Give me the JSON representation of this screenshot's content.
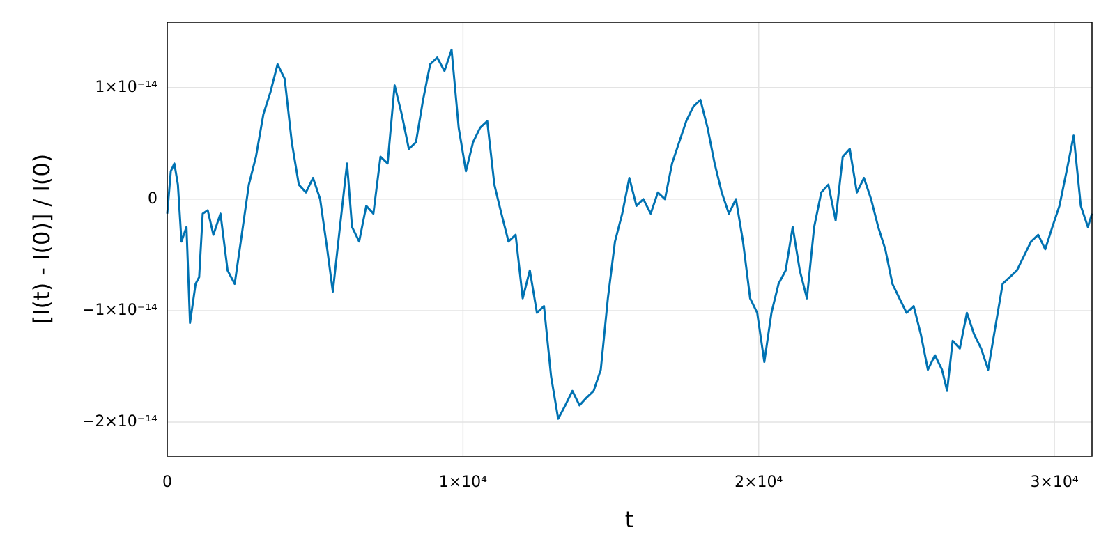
{
  "chart_data": {
    "type": "line",
    "xlabel": "t",
    "ylabel": "[I(t) - I(0)] / I(0)",
    "color": "#0072b2",
    "grid": true,
    "xlim": [
      0,
      31270
    ],
    "ylim": [
      -2.306e-14,
      1.586e-14
    ],
    "xticks": [
      0,
      {
        "value": 10000,
        "label": "1×10⁴"
      },
      {
        "value": 20000,
        "label": "2×10⁴"
      },
      {
        "value": 30000,
        "label": "3×10⁴"
      }
    ],
    "yticks": [
      {
        "value": -2e-14,
        "label": "−2×10⁻¹⁴"
      },
      {
        "value": -1e-14,
        "label": "−1×10⁻¹⁴"
      },
      0,
      {
        "value": 1e-14,
        "label": "1×10⁻¹⁴"
      }
    ],
    "x": [
      0,
      120,
      240,
      360,
      480,
      650,
      770,
      960,
      1080,
      1200,
      1370,
      1560,
      1800,
      2040,
      2280,
      2520,
      2760,
      3000,
      3250,
      3490,
      3730,
      3970,
      4210,
      4450,
      4690,
      4930,
      5170,
      5410,
      5600,
      5840,
      6080,
      6250,
      6490,
      6730,
      6970,
      7210,
      7450,
      7690,
      7930,
      8170,
      8410,
      8650,
      8890,
      9130,
      9375,
      9615,
      9855,
      10100,
      10340,
      10580,
      10820,
      11060,
      11300,
      11540,
      11780,
      12020,
      12260,
      12500,
      12740,
      12980,
      13220,
      13460,
      13700,
      13940,
      14180,
      14420,
      14660,
      14900,
      15140,
      15385,
      15625,
      15865,
      16100,
      16350,
      16590,
      16830,
      17070,
      17310,
      17550,
      17790,
      18030,
      18270,
      18510,
      18750,
      18990,
      19230,
      19470,
      19710,
      19950,
      20190,
      20430,
      20670,
      20910,
      21150,
      21390,
      21630,
      21875,
      22115,
      22355,
      22600,
      22840,
      23080,
      23320,
      23560,
      23800,
      24040,
      24280,
      24520,
      24760,
      25000,
      25240,
      25480,
      25720,
      25960,
      26200,
      26370,
      26560,
      26800,
      27040,
      27280,
      27520,
      27760,
      28000,
      28250,
      28490,
      28730,
      28970,
      29210,
      29450,
      29690,
      29930,
      30170,
      30410,
      30650,
      30890,
      31130,
      31270
    ],
    "values": [
      -1.3e-15,
      2.5e-15,
      3.2e-15,
      1.3e-15,
      -3.8e-15,
      -2.5e-15,
      -1.11e-14,
      -7.6e-15,
      -7e-15,
      -1.3e-15,
      -1e-15,
      -3.2e-15,
      -1.3e-15,
      -6.4e-15,
      -7.6e-15,
      -3.2e-15,
      1.3e-15,
      3.8e-15,
      7.6e-15,
      9.6e-15,
      1.21e-14,
      1.08e-14,
      5.1e-15,
      1.3e-15,
      6e-16,
      1.9e-15,
      0,
      -4.5e-15,
      -8.3e-15,
      -2.5e-15,
      3.2e-15,
      -2.5e-15,
      -3.8e-15,
      -6e-16,
      -1.3e-15,
      3.8e-15,
      3.2e-15,
      1.02e-14,
      7.6e-15,
      4.5e-15,
      5.1e-15,
      8.9e-15,
      1.21e-14,
      1.27e-14,
      1.15e-14,
      1.34e-14,
      6.4e-15,
      2.5e-15,
      5.1e-15,
      6.4e-15,
      7e-15,
      1.3e-15,
      -1.3e-15,
      -3.8e-15,
      -3.2e-15,
      -8.9e-15,
      -6.4e-15,
      -1.02e-14,
      -9.6e-15,
      -1.59e-14,
      -1.97e-14,
      -1.85e-14,
      -1.72e-14,
      -1.85e-14,
      -1.78e-14,
      -1.72e-14,
      -1.53e-14,
      -8.9e-15,
      -3.8e-15,
      -1.3e-15,
      1.9e-15,
      -6e-16,
      0,
      -1.3e-15,
      6e-16,
      0,
      3.2e-15,
      5.1e-15,
      7e-15,
      8.3e-15,
      8.9e-15,
      6.4e-15,
      3.2e-15,
      6e-16,
      -1.3e-15,
      0,
      -3.8e-15,
      -8.9e-15,
      -1.02e-14,
      -1.46e-14,
      -1.02e-14,
      -7.6e-15,
      -6.4e-15,
      -2.5e-15,
      -6.4e-15,
      -8.9e-15,
      -2.5e-15,
      6e-16,
      1.3e-15,
      -1.9e-15,
      3.8e-15,
      4.5e-15,
      6e-16,
      1.9e-15,
      0,
      -2.5e-15,
      -4.5e-15,
      -7.6e-15,
      -8.9e-15,
      -1.02e-14,
      -9.6e-15,
      -1.21e-14,
      -1.53e-14,
      -1.4e-14,
      -1.53e-14,
      -1.72e-14,
      -1.27e-14,
      -1.34e-14,
      -1.02e-14,
      -1.21e-14,
      -1.34e-14,
      -1.53e-14,
      -1.15e-14,
      -7.6e-15,
      -7e-15,
      -6.4e-15,
      -5.1e-15,
      -3.8e-15,
      -3.2e-15,
      -4.5e-15,
      -2.5e-15,
      -6e-16,
      2.5e-15,
      5.7e-15,
      -6e-16,
      -2.5e-15,
      -1.3e-15
    ]
  }
}
